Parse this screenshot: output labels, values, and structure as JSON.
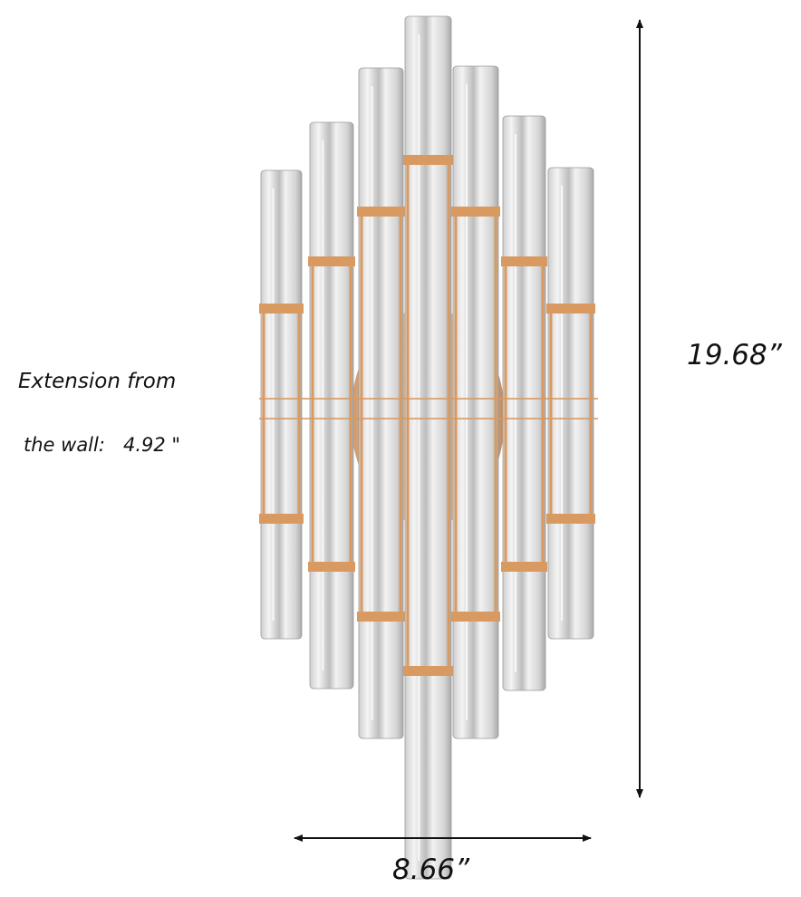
{
  "annotations": {
    "extension_line1": "Extension from",
    "extension_line2": "the wall:   4.92 \"",
    "height": "19.68”",
    "width": "8.66”"
  }
}
